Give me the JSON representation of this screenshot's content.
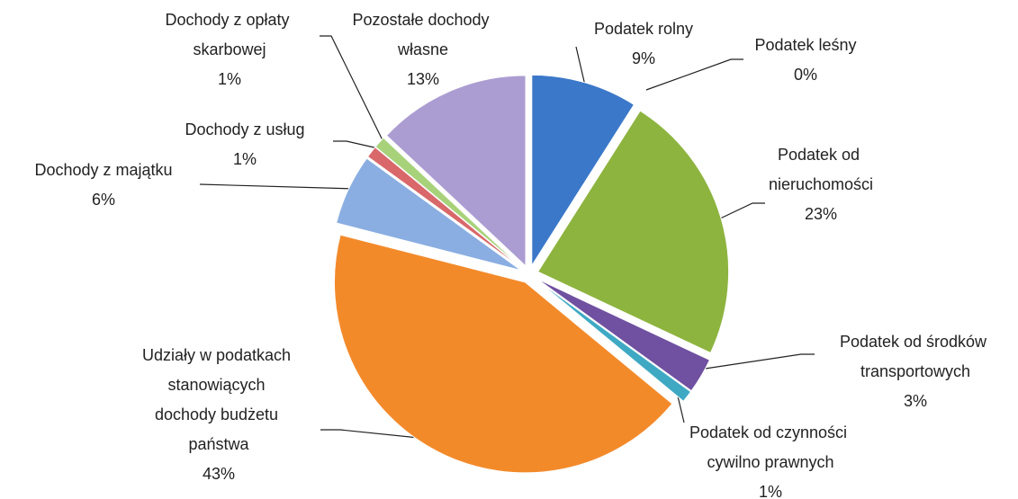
{
  "chart_data": {
    "type": "pie",
    "categories": [
      "Podatek rolny",
      "Podatek leśny",
      "Podatek od nieruchomości",
      "Podatek od środków transportowych",
      "Podatek od czynności cywilno prawnych",
      "Udziały w podatkach stanowiących dochody budżetu państwa",
      "Dochody z majątku",
      "Dochody z usług",
      "Dochody z opłaty skarbowej",
      "Pozostałe dochody własne"
    ],
    "values": [
      9,
      0,
      23,
      3,
      1,
      43,
      6,
      1,
      1,
      13
    ],
    "value_labels": [
      "9%",
      "0%",
      "23%",
      "3%",
      "1%",
      "43%",
      "6%",
      "1%",
      "1%",
      "13%"
    ],
    "colors": [
      "#3b78c9",
      "#c0504d",
      "#8db43f",
      "#7050a0",
      "#3fa9c4",
      "#f38a2a",
      "#8aaee2",
      "#d9686a",
      "#a7d27a",
      "#ab9dd2"
    ]
  }
}
